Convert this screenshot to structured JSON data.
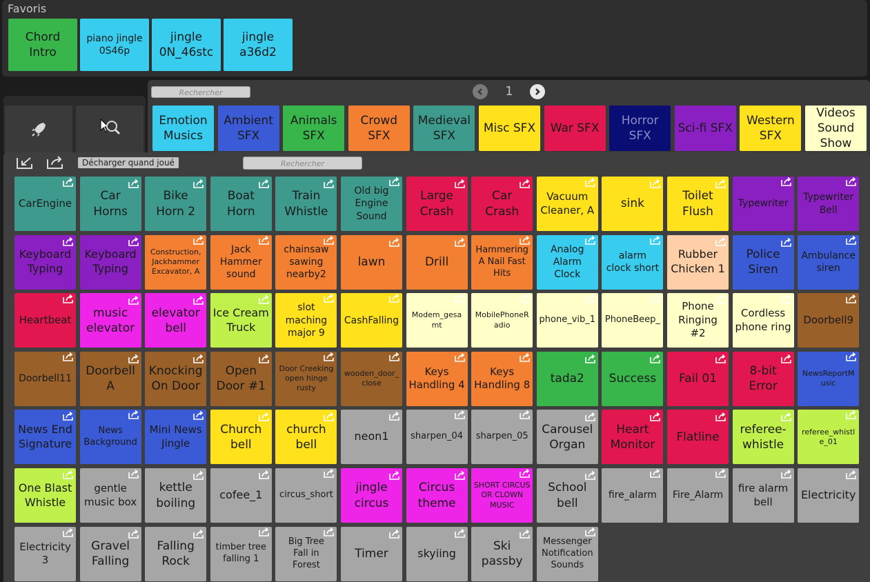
{
  "colors": {
    "teal": "#3f9a8e",
    "red": "#e3174f",
    "yellow": "#ffe21c",
    "purple": "#8a20c2",
    "orange": "#f37f33",
    "cyan": "#38cdee",
    "peach": "#ffd0a8",
    "blue": "#3b5bd6",
    "magenta": "#ee24e8",
    "lime": "#bff04b",
    "cream": "#ffffc8",
    "brown": "#99602a",
    "green": "#39b64b",
    "gray": "#a6a6a6",
    "navy": "#0a0e74"
  },
  "favorites": {
    "title": "Favoris",
    "items": [
      {
        "label": "Chord\nIntro",
        "color": "green",
        "size": 17
      },
      {
        "label": "piano jingle\n0S46p",
        "color": "cyan",
        "size": 14
      },
      {
        "label": "jingle\n0N_46stc",
        "color": "cyan",
        "size": 17
      },
      {
        "label": "jingle\na36d2",
        "color": "cyan",
        "size": 17
      }
    ]
  },
  "categories": {
    "search_placeholder": "Rechercher",
    "page_number": "1",
    "items": [
      {
        "label": "Emotion\nMusics",
        "color": "cyan"
      },
      {
        "label": "Ambient\nSFX",
        "color": "blue"
      },
      {
        "label": "Animals\nSFX",
        "color": "green"
      },
      {
        "label": "Crowd\nSFX",
        "color": "orange"
      },
      {
        "label": "Medieval\nSFX",
        "color": "teal"
      },
      {
        "label": "Misc SFX",
        "color": "yellow"
      },
      {
        "label": "War SFX",
        "color": "red"
      },
      {
        "label": "Horror\nSFX",
        "color": "navy",
        "text": "#8c8cc8"
      },
      {
        "label": "Sci-fi SFX",
        "color": "purple"
      },
      {
        "label": "Western\nSFX",
        "color": "yellow"
      },
      {
        "label": "Videos\nSound\nShow",
        "color": "cream"
      }
    ]
  },
  "toolbar": {
    "unload_label": "Décharger quand joué",
    "search_placeholder": "Rechercher"
  },
  "sounds": [
    {
      "label": "CarEngine",
      "color": "teal",
      "size": 15
    },
    {
      "label": "Car\nHorns",
      "color": "teal",
      "size": 17
    },
    {
      "label": "Bike\nHorn 2",
      "color": "teal",
      "size": 17
    },
    {
      "label": "Boat\nHorn",
      "color": "teal",
      "size": 17
    },
    {
      "label": "Train\nWhistle",
      "color": "teal",
      "size": 17
    },
    {
      "label": "Old big\nEngine\nSound",
      "color": "teal",
      "size": 14
    },
    {
      "label": "Large\nCrash",
      "color": "red",
      "size": 17
    },
    {
      "label": "Car\nCrash",
      "color": "red",
      "size": 17
    },
    {
      "label": "Vacuum\nCleaner, A",
      "color": "yellow",
      "size": 15
    },
    {
      "label": "sink",
      "color": "yellow",
      "size": 17
    },
    {
      "label": "Toilet\nFlush",
      "color": "yellow",
      "size": 17
    },
    {
      "label": "Typewriter",
      "color": "purple",
      "size": 14
    },
    {
      "label": "Typewriter\nBell",
      "color": "purple",
      "size": 14
    },
    {
      "label": "Keyboard\nTyping",
      "color": "purple",
      "size": 16
    },
    {
      "label": "Keyboard\nTyping",
      "color": "purple",
      "size": 16
    },
    {
      "label": "Construction,\nJackhammer\nExcavator, A",
      "color": "orange",
      "size": 11
    },
    {
      "label": "Jack\nHammer\nsound",
      "color": "orange",
      "size": 14
    },
    {
      "label": "chainsaw\nsawing\nnearby2",
      "color": "orange",
      "size": 14
    },
    {
      "label": "lawn",
      "color": "orange",
      "size": 17
    },
    {
      "label": "Drill",
      "color": "orange",
      "size": 17
    },
    {
      "label": "Hammering\nA Nail Fast\nHits",
      "color": "orange",
      "size": 13
    },
    {
      "label": "Analog\nAlarm\nClock",
      "color": "cyan",
      "size": 14
    },
    {
      "label": "alarm\nclock short",
      "color": "cyan",
      "size": 14
    },
    {
      "label": "Rubber\nChicken 1",
      "color": "peach",
      "size": 16
    },
    {
      "label": "Police\nSiren",
      "color": "blue",
      "size": 17
    },
    {
      "label": "Ambulance\nsiren",
      "color": "blue",
      "size": 14
    },
    {
      "label": "Heartbeat",
      "color": "red",
      "size": 15
    },
    {
      "label": "music\nelevator",
      "color": "magenta",
      "size": 17
    },
    {
      "label": "elevator\nbell",
      "color": "magenta",
      "size": 17
    },
    {
      "label": "Ice Cream\nTruck",
      "color": "lime",
      "size": 16
    },
    {
      "label": "slot\nmaching\nmajor 9",
      "color": "yellow",
      "size": 14
    },
    {
      "label": "CashFalling",
      "color": "yellow",
      "size": 14
    },
    {
      "label": "Modem_gesa\nmt",
      "color": "cream",
      "size": 11
    },
    {
      "label": "MobilePhoneR\nadio",
      "color": "cream",
      "size": 11
    },
    {
      "label": "phone_vib_1",
      "color": "cream",
      "size": 13
    },
    {
      "label": "PhoneBeep_",
      "color": "cream",
      "size": 13
    },
    {
      "label": "Phone\nRinging #2",
      "color": "cream",
      "size": 15
    },
    {
      "label": "Cordless\nphone ring",
      "color": "cream",
      "size": 15
    },
    {
      "label": "Doorbell9",
      "color": "brown",
      "size": 15
    },
    {
      "label": "Doorbell11",
      "color": "brown",
      "size": 14
    },
    {
      "label": "Doorbell\nA",
      "color": "brown",
      "size": 17
    },
    {
      "label": "Knocking\nOn Door",
      "color": "brown",
      "size": 17
    },
    {
      "label": "Open\nDoor #1",
      "color": "brown",
      "size": 17
    },
    {
      "label": "Door Creeking\nopen hinge\nrusty",
      "color": "brown",
      "size": 11
    },
    {
      "label": "wooden_door_\nclose",
      "color": "brown",
      "size": 11
    },
    {
      "label": "Keys\nHandling 4",
      "color": "orange",
      "size": 15
    },
    {
      "label": "Keys\nHandling 8",
      "color": "orange",
      "size": 15
    },
    {
      "label": "tada2",
      "color": "green",
      "size": 17
    },
    {
      "label": "Success",
      "color": "green",
      "size": 17
    },
    {
      "label": "Fail 01",
      "color": "red",
      "size": 17
    },
    {
      "label": "8-bit\nError",
      "color": "red",
      "size": 17
    },
    {
      "label": "NewsReportM\nusic",
      "color": "blue",
      "size": 11
    },
    {
      "label": "News End\nSignature",
      "color": "blue",
      "size": 16
    },
    {
      "label": "News\nBackground",
      "color": "blue",
      "size": 13
    },
    {
      "label": "Mini News\nJingle",
      "color": "blue",
      "size": 15
    },
    {
      "label": "Church\nbell",
      "color": "yellow",
      "size": 17
    },
    {
      "label": "church\nbell",
      "color": "yellow",
      "size": 17
    },
    {
      "label": "neon1",
      "color": "gray",
      "size": 16
    },
    {
      "label": "sharpen_04",
      "color": "gray",
      "size": 13
    },
    {
      "label": "sharpen_05",
      "color": "gray",
      "size": 13
    },
    {
      "label": "Carousel\nOrgan",
      "color": "gray",
      "size": 17
    },
    {
      "label": "Heart\nMonitor",
      "color": "red",
      "size": 17
    },
    {
      "label": "Flatline",
      "color": "red",
      "size": 17
    },
    {
      "label": "referee-\nwhistle",
      "color": "lime",
      "size": 17
    },
    {
      "label": "referee_whistl\ne_01",
      "color": "lime",
      "size": 11
    },
    {
      "label": "One Blast\nWhistle",
      "color": "lime",
      "size": 16
    },
    {
      "label": "gentle\nmusic box",
      "color": "gray",
      "size": 15
    },
    {
      "label": "kettle\nboiling",
      "color": "gray",
      "size": 17
    },
    {
      "label": "cofee_1",
      "color": "gray",
      "size": 16
    },
    {
      "label": "circus_short",
      "color": "gray",
      "size": 13
    },
    {
      "label": "jingle\ncircus",
      "color": "magenta",
      "size": 17
    },
    {
      "label": "Circus\ntheme",
      "color": "magenta",
      "size": 17
    },
    {
      "label": "SHORT CIRCUS\nOR CLOWN\nMUSIC",
      "color": "magenta",
      "size": 11
    },
    {
      "label": "School\nbell",
      "color": "gray",
      "size": 17
    },
    {
      "label": "fire_alarm",
      "color": "gray",
      "size": 14
    },
    {
      "label": "Fire_Alarm",
      "color": "gray",
      "size": 14
    },
    {
      "label": "fire alarm\nbell",
      "color": "gray",
      "size": 15
    },
    {
      "label": "Electricity",
      "color": "gray",
      "size": 16
    },
    {
      "label": "Electricity\n3",
      "color": "gray",
      "size": 15
    },
    {
      "label": "Gravel\nFalling",
      "color": "gray",
      "size": 17
    },
    {
      "label": "Falling\nRock",
      "color": "gray",
      "size": 17
    },
    {
      "label": "timber tree\nfalling 1",
      "color": "gray",
      "size": 13
    },
    {
      "label": "Big Tree\nFall in\nForest",
      "color": "gray",
      "size": 13
    },
    {
      "label": "Timer",
      "color": "gray",
      "size": 17
    },
    {
      "label": "skyiing",
      "color": "gray",
      "size": 16
    },
    {
      "label": "Ski\npassby",
      "color": "gray",
      "size": 17
    },
    {
      "label": "Messenger\nNotification\nSounds",
      "color": "gray",
      "size": 13
    }
  ],
  "icons": {
    "launch": "rocket-icon",
    "search": "magnifier-icon",
    "import": "import-icon",
    "export": "export-icon",
    "tile_export": "export-icon",
    "prev": "chevron-left-icon",
    "next": "chevron-right-icon"
  }
}
